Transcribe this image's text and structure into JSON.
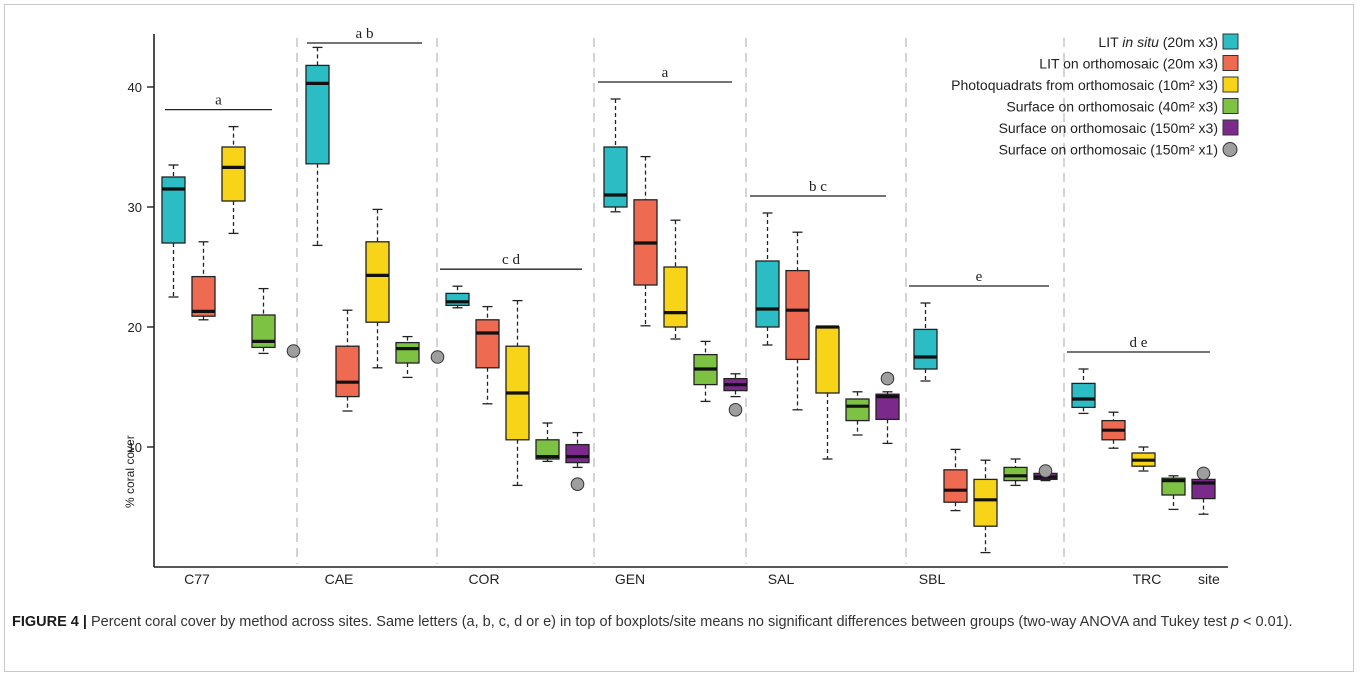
{
  "chart_data": {
    "type": "boxplot",
    "ylabel": "% coral cover",
    "xlabel": "site",
    "ylim": [
      0,
      44
    ],
    "yticks": [
      10,
      20,
      30,
      40
    ],
    "categories": [
      "C77",
      "CAE",
      "COR",
      "GEN",
      "SAL",
      "SBL",
      "TRC"
    ],
    "groupings": [
      {
        "site": "C77",
        "letter": "a"
      },
      {
        "site": "CAE",
        "letter": "a b"
      },
      {
        "site": "COR",
        "letter": "c d"
      },
      {
        "site": "GEN",
        "letter": "a"
      },
      {
        "site": "SAL",
        "letter": "b c"
      },
      {
        "site": "SBL",
        "letter": "e"
      },
      {
        "site": "TRC",
        "letter": "d e"
      }
    ],
    "series": [
      {
        "name": "LIT in situ (20m x3)",
        "color": "#2bbcc4",
        "boxes": [
          {
            "site": "C77",
            "whislo": 22.5,
            "q1": 27.0,
            "med": 31.5,
            "q3": 32.5,
            "whishi": 33.5
          },
          {
            "site": "CAE",
            "whislo": 26.8,
            "q1": 33.6,
            "med": 40.3,
            "q3": 41.8,
            "whishi": 43.3
          },
          {
            "site": "COR",
            "whislo": 21.6,
            "q1": 21.8,
            "med": 22.1,
            "q3": 22.8,
            "whishi": 23.4
          },
          {
            "site": "GEN",
            "whislo": 29.6,
            "q1": 30.0,
            "med": 31.0,
            "q3": 35.0,
            "whishi": 39.0
          },
          {
            "site": "SAL",
            "whislo": 18.5,
            "q1": 20.0,
            "med": 21.5,
            "q3": 25.5,
            "whishi": 29.5
          },
          {
            "site": "SBL",
            "whislo": 15.5,
            "q1": 16.5,
            "med": 17.5,
            "q3": 19.8,
            "whishi": 22.0
          },
          {
            "site": "TRC",
            "whislo": 12.8,
            "q1": 13.3,
            "med": 14.0,
            "q3": 15.3,
            "whishi": 16.5
          }
        ]
      },
      {
        "name": "LIT on orthomosaic (20m x3)",
        "color": "#ee6a50",
        "boxes": [
          {
            "site": "C77",
            "whislo": 20.6,
            "q1": 20.9,
            "med": 21.3,
            "q3": 24.2,
            "whishi": 27.1
          },
          {
            "site": "CAE",
            "whislo": 13.0,
            "q1": 14.2,
            "med": 15.4,
            "q3": 18.4,
            "whishi": 21.4
          },
          {
            "site": "COR",
            "whislo": 13.6,
            "q1": 16.6,
            "med": 19.5,
            "q3": 20.6,
            "whishi": 21.7
          },
          {
            "site": "GEN",
            "whislo": 20.1,
            "q1": 23.5,
            "med": 27.0,
            "q3": 30.6,
            "whishi": 34.2
          },
          {
            "site": "SAL",
            "whislo": 13.1,
            "q1": 17.3,
            "med": 21.4,
            "q3": 24.7,
            "whishi": 27.9
          },
          {
            "site": "SBL",
            "whislo": 4.7,
            "q1": 5.4,
            "med": 6.4,
            "q3": 8.1,
            "whishi": 9.8
          },
          {
            "site": "TRC",
            "whislo": 9.9,
            "q1": 10.6,
            "med": 11.4,
            "q3": 12.2,
            "whishi": 12.9
          }
        ]
      },
      {
        "name": "Photoquadrats from orthomosaic (10m² x3)",
        "color": "#f7d417",
        "boxes": [
          {
            "site": "C77",
            "whislo": 27.8,
            "q1": 30.5,
            "med": 33.3,
            "q3": 35.0,
            "whishi": 36.7
          },
          {
            "site": "CAE",
            "whislo": 16.6,
            "q1": 20.4,
            "med": 24.3,
            "q3": 27.1,
            "whishi": 29.8
          },
          {
            "site": "COR",
            "whislo": 6.8,
            "q1": 10.6,
            "med": 14.5,
            "q3": 18.4,
            "whishi": 22.2
          },
          {
            "site": "GEN",
            "whislo": 19.0,
            "q1": 20.0,
            "med": 21.2,
            "q3": 25.0,
            "whishi": 28.9
          },
          {
            "site": "SAL",
            "whislo": 9.0,
            "q1": 14.5,
            "med": 20.0,
            "q3": 20.0,
            "whishi": 20.0
          },
          {
            "site": "SBL",
            "whislo": 1.2,
            "q1": 3.4,
            "med": 5.6,
            "q3": 7.3,
            "whishi": 8.9
          },
          {
            "site": "TRC",
            "whislo": 8.0,
            "q1": 8.4,
            "med": 8.9,
            "q3": 9.5,
            "whishi": 10.0
          }
        ]
      },
      {
        "name": "Surface on orthomosaic (40m² x3)",
        "color": "#7dc243",
        "boxes": [
          {
            "site": "C77",
            "whislo": 17.8,
            "q1": 18.3,
            "med": 18.8,
            "q3": 21.0,
            "whishi": 23.2
          },
          {
            "site": "CAE",
            "whislo": 15.8,
            "q1": 17.0,
            "med": 18.2,
            "q3": 18.7,
            "whishi": 19.2
          },
          {
            "site": "COR",
            "whislo": 8.8,
            "q1": 9.0,
            "med": 9.2,
            "q3": 10.6,
            "whishi": 12.0
          },
          {
            "site": "GEN",
            "whislo": 13.8,
            "q1": 15.2,
            "med": 16.5,
            "q3": 17.7,
            "whishi": 18.8
          },
          {
            "site": "SAL",
            "whislo": 11.0,
            "q1": 12.2,
            "med": 13.4,
            "q3": 14.0,
            "whishi": 14.6
          },
          {
            "site": "SBL",
            "whislo": 6.8,
            "q1": 7.2,
            "med": 7.6,
            "q3": 8.3,
            "whishi": 9.0
          },
          {
            "site": "TRC",
            "whislo": 4.8,
            "q1": 6.0,
            "med": 7.2,
            "q3": 7.4,
            "whishi": 7.6
          }
        ]
      },
      {
        "name": "Surface on orthomosaic (150m² x3)",
        "color": "#7b2a8c",
        "boxes": [
          {
            "site": "COR",
            "whislo": 8.3,
            "q1": 8.7,
            "med": 9.2,
            "q3": 10.2,
            "whishi": 11.2
          },
          {
            "site": "GEN",
            "whislo": 14.2,
            "q1": 14.7,
            "med": 15.2,
            "q3": 15.7,
            "whishi": 16.1
          },
          {
            "site": "SAL",
            "whislo": 10.3,
            "q1": 12.3,
            "med": 14.2,
            "q3": 14.4,
            "whishi": 14.6
          },
          {
            "site": "SBL",
            "whislo": 7.2,
            "q1": 7.3,
            "med": 7.5,
            "q3": 7.8,
            "whishi": 8.1
          },
          {
            "site": "TRC",
            "whislo": 4.4,
            "q1": 5.7,
            "med": 7.0,
            "q3": 7.3,
            "whishi": 7.6
          }
        ]
      },
      {
        "name": "Surface on orthomosaic (150m² x1)",
        "color": "#9e9e9e",
        "points": [
          {
            "site": "C77",
            "value": 18.0
          },
          {
            "site": "CAE",
            "value": 17.5
          },
          {
            "site": "COR",
            "value": 6.9
          },
          {
            "site": "GEN",
            "value": 13.1
          },
          {
            "site": "SAL",
            "value": 15.7
          },
          {
            "site": "SBL",
            "value": 8.0
          },
          {
            "site": "TRC",
            "value": 7.8
          }
        ]
      }
    ],
    "legend": {
      "placement": "top-right",
      "entries": [
        {
          "prefix": "LIT ",
          "italic": "in situ",
          "suffix": " (20m x3)"
        },
        {
          "prefix": "LIT on orthomosaic (20m x3)",
          "italic": "",
          "suffix": ""
        },
        {
          "prefix": "Photoquadrats from orthomosaic (10m² x3)",
          "italic": "",
          "suffix": ""
        },
        {
          "prefix": "Surface on orthomosaic (40m² x3)",
          "italic": "",
          "suffix": ""
        },
        {
          "prefix": "Surface on orthomosaic (150m² x3)",
          "italic": "",
          "suffix": ""
        },
        {
          "prefix": "Surface on orthomosaic (150m² x1)",
          "italic": "",
          "suffix": ""
        }
      ]
    }
  },
  "caption": {
    "label": "FIGURE 4 |",
    "text_before_p": " Percent coral cover by method across sites. Same letters (a, b, c, d or e) in top of boxplots/site means no significant differences between groups (two-way ANOVA and Tukey test ",
    "p_symbol": "p",
    "text_after_p": " < 0.01)."
  }
}
